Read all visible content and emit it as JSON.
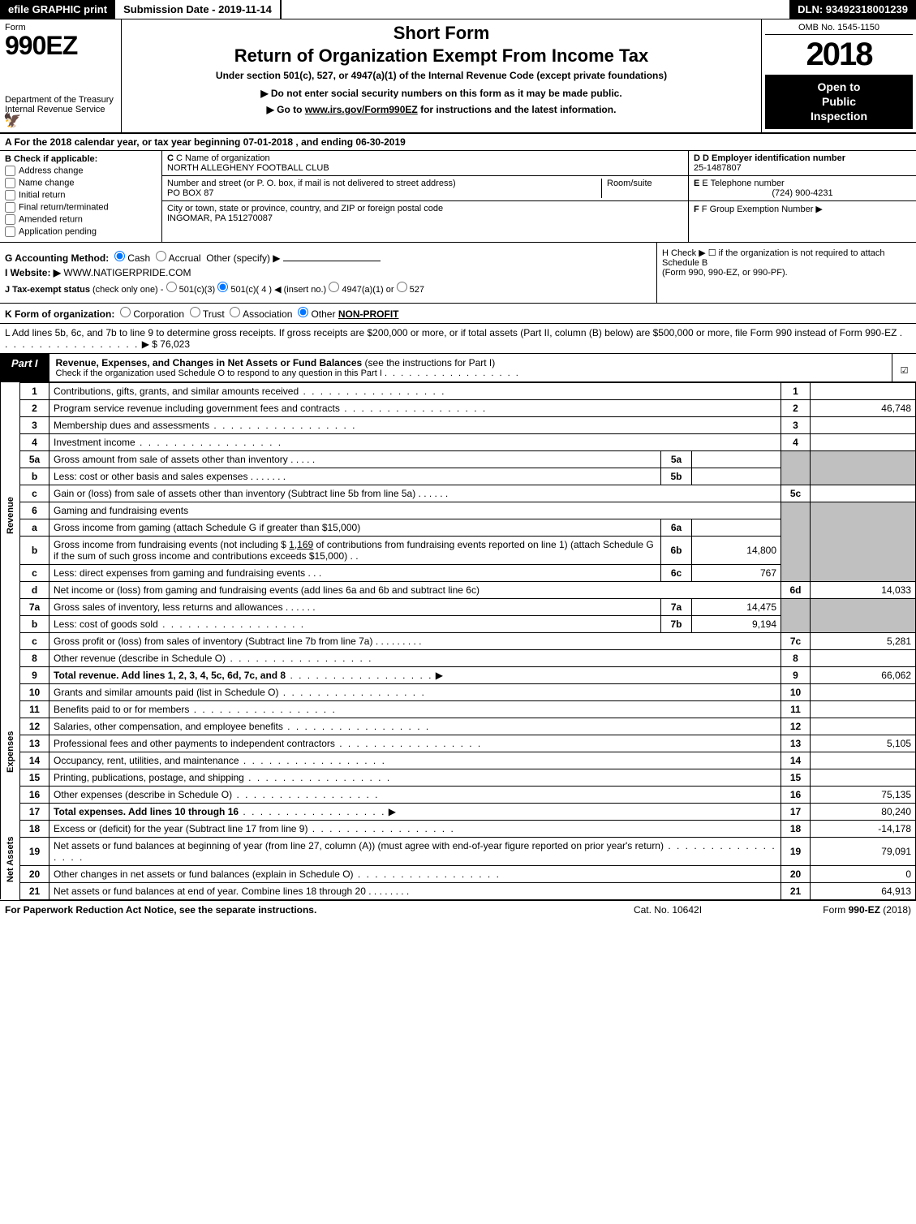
{
  "topbar": {
    "efile": "efile GRAPHIC print",
    "submission": "Submission Date - 2019-11-14",
    "dln": "DLN: 93492318001239"
  },
  "header": {
    "form_label": "Form",
    "form_number": "990EZ",
    "dept": "Department of the Treasury",
    "irs": "Internal Revenue Service",
    "title1": "Short Form",
    "title2": "Return of Organization Exempt From Income Tax",
    "subtitle": "Under section 501(c), 527, or 4947(a)(1) of the Internal Revenue Code (except private foundations)",
    "note1": "▶ Do not enter social security numbers on this form as it may be made public.",
    "note2_prefix": "▶ Go to ",
    "note2_link": "www.irs.gov/Form990EZ",
    "note2_suffix": " for instructions and the latest information.",
    "omb": "OMB No. 1545-1150",
    "year": "2018",
    "inspection1": "Open to",
    "inspection2": "Public",
    "inspection3": "Inspection"
  },
  "row_a": {
    "prefix": "A For the 2018 calendar year, or tax year beginning ",
    "begin": "07-01-2018",
    "mid": " , and ending ",
    "end": "06-30-2019"
  },
  "section_b": {
    "label": "B Check if applicable:",
    "opts": [
      "Address change",
      "Name change",
      "Initial return",
      "Final return/terminated",
      "Amended return",
      "Application pending"
    ]
  },
  "section_c": {
    "name_label": "C Name of organization",
    "name_val": "NORTH ALLEGHENY FOOTBALL CLUB",
    "addr_label": "Number and street (or P. O. box, if mail is not delivered to street address)",
    "addr_val": "PO BOX 87",
    "room_label": "Room/suite",
    "city_label": "City or town, state or province, country, and ZIP or foreign postal code",
    "city_val": "INGOMAR, PA  151270087"
  },
  "section_d": {
    "ein_label": "D Employer identification number",
    "ein_val": "25-1487807",
    "phone_label": "E Telephone number",
    "phone_val": "(724) 900-4231",
    "group_label": "F Group Exemption Number  ▶"
  },
  "row_g": {
    "label": "G Accounting Method:",
    "cash": "Cash",
    "accrual": "Accrual",
    "other": "Other (specify) ▶"
  },
  "row_h": {
    "text1": "H Check ▶ ☐ if the organization is not required to attach Schedule B",
    "text2": "(Form 990, 990-EZ, or 990-PF)."
  },
  "row_i": {
    "label": "I Website: ▶",
    "val": "WWW.NATIGERPRIDE.COM"
  },
  "row_j": {
    "label": "J Tax-exempt status",
    "note": "(check only one) -",
    "o1": "501(c)(3)",
    "o2": "501(c)( 4 ) ◀ (insert no.)",
    "o3": "4947(a)(1) or",
    "o4": "527"
  },
  "row_k": {
    "label": "K Form of organization:",
    "o1": "Corporation",
    "o2": "Trust",
    "o3": "Association",
    "o4": "Other",
    "other_val": "NON-PROFIT"
  },
  "row_l": {
    "text": "L Add lines 5b, 6c, and 7b to line 9 to determine gross receipts. If gross receipts are $200,000 or more, or if total assets (Part II, column (B) below) are $500,000 or more, file Form 990 instead of Form 990-EZ",
    "arrow": "▶",
    "amount": "$ 76,023"
  },
  "part1": {
    "tab": "Part I",
    "title": "Revenue, Expenses, and Changes in Net Assets or Fund Balances",
    "title_suffix": "(see the instructions for Part I)",
    "subnote": "Check if the organization used Schedule O to respond to any question in this Part I"
  },
  "side_labels": {
    "revenue": "Revenue",
    "expenses": "Expenses",
    "net_assets": "Net Assets"
  },
  "lines": {
    "l1": {
      "no": "1",
      "desc": "Contributions, gifts, grants, and similar amounts received",
      "rn": "1",
      "rv": ""
    },
    "l2": {
      "no": "2",
      "desc": "Program service revenue including government fees and contracts",
      "rn": "2",
      "rv": "46,748"
    },
    "l3": {
      "no": "3",
      "desc": "Membership dues and assessments",
      "rn": "3",
      "rv": ""
    },
    "l4": {
      "no": "4",
      "desc": "Investment income",
      "rn": "4",
      "rv": ""
    },
    "l5a": {
      "no": "5a",
      "desc": "Gross amount from sale of assets other than inventory",
      "in": "5a",
      "iv": ""
    },
    "l5b": {
      "no": "b",
      "desc": "Less: cost or other basis and sales expenses",
      "in": "5b",
      "iv": ""
    },
    "l5c": {
      "no": "c",
      "desc": "Gain or (loss) from sale of assets other than inventory (Subtract line 5b from line 5a)",
      "rn": "5c",
      "rv": ""
    },
    "l6": {
      "no": "6",
      "desc": "Gaming and fundraising events"
    },
    "l6a": {
      "no": "a",
      "desc": "Gross income from gaming (attach Schedule G if greater than $15,000)",
      "in": "6a",
      "iv": ""
    },
    "l6b": {
      "no": "b",
      "desc1": "Gross income from fundraising events (not including $ ",
      "amount": "1,169",
      "desc2": " of contributions from fundraising events reported on line 1) (attach Schedule G if the sum of such gross income and contributions exceeds $15,000)",
      "in": "6b",
      "iv": "14,800"
    },
    "l6c": {
      "no": "c",
      "desc": "Less: direct expenses from gaming and fundraising events",
      "in": "6c",
      "iv": "767"
    },
    "l6d": {
      "no": "d",
      "desc": "Net income or (loss) from gaming and fundraising events (add lines 6a and 6b and subtract line 6c)",
      "rn": "6d",
      "rv": "14,033"
    },
    "l7a": {
      "no": "7a",
      "desc": "Gross sales of inventory, less returns and allowances",
      "in": "7a",
      "iv": "14,475"
    },
    "l7b": {
      "no": "b",
      "desc": "Less: cost of goods sold",
      "in": "7b",
      "iv": "9,194"
    },
    "l7c": {
      "no": "c",
      "desc": "Gross profit or (loss) from sales of inventory (Subtract line 7b from line 7a)",
      "rn": "7c",
      "rv": "5,281"
    },
    "l8": {
      "no": "8",
      "desc": "Other revenue (describe in Schedule O)",
      "rn": "8",
      "rv": ""
    },
    "l9": {
      "no": "9",
      "desc": "Total revenue. Add lines 1, 2, 3, 4, 5c, 6d, 7c, and 8",
      "rn": "9",
      "rv": "66,062"
    },
    "l10": {
      "no": "10",
      "desc": "Grants and similar amounts paid (list in Schedule O)",
      "rn": "10",
      "rv": ""
    },
    "l11": {
      "no": "11",
      "desc": "Benefits paid to or for members",
      "rn": "11",
      "rv": ""
    },
    "l12": {
      "no": "12",
      "desc": "Salaries, other compensation, and employee benefits",
      "rn": "12",
      "rv": ""
    },
    "l13": {
      "no": "13",
      "desc": "Professional fees and other payments to independent contractors",
      "rn": "13",
      "rv": "5,105"
    },
    "l14": {
      "no": "14",
      "desc": "Occupancy, rent, utilities, and maintenance",
      "rn": "14",
      "rv": ""
    },
    "l15": {
      "no": "15",
      "desc": "Printing, publications, postage, and shipping",
      "rn": "15",
      "rv": ""
    },
    "l16": {
      "no": "16",
      "desc": "Other expenses (describe in Schedule O)",
      "rn": "16",
      "rv": "75,135"
    },
    "l17": {
      "no": "17",
      "desc": "Total expenses. Add lines 10 through 16",
      "rn": "17",
      "rv": "80,240"
    },
    "l18": {
      "no": "18",
      "desc": "Excess or (deficit) for the year (Subtract line 17 from line 9)",
      "rn": "18",
      "rv": "-14,178"
    },
    "l19": {
      "no": "19",
      "desc": "Net assets or fund balances at beginning of year (from line 27, column (A)) (must agree with end-of-year figure reported on prior year's return)",
      "rn": "19",
      "rv": "79,091"
    },
    "l20": {
      "no": "20",
      "desc": "Other changes in net assets or fund balances (explain in Schedule O)",
      "rn": "20",
      "rv": "0"
    },
    "l21": {
      "no": "21",
      "desc": "Net assets or fund balances at end of year. Combine lines 18 through 20",
      "rn": "21",
      "rv": "64,913"
    }
  },
  "footer": {
    "fpra": "For Paperwork Reduction Act Notice, see the separate instructions.",
    "catno": "Cat. No. 10642I",
    "formref_prefix": "Form ",
    "formref_bold": "990-EZ",
    "formref_suffix": " (2018)"
  },
  "colors": {
    "black": "#000000",
    "white": "#ffffff",
    "shaded": "#c0c0c0"
  }
}
